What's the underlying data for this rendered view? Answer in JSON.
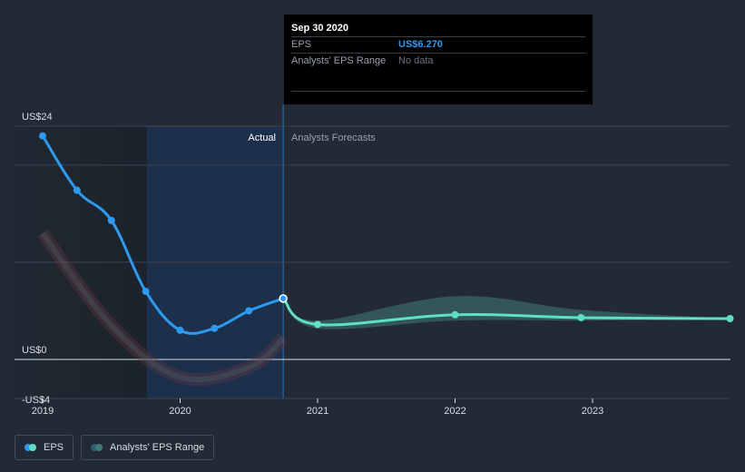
{
  "tooltip": {
    "date": "Sep 30 2020",
    "eps_label": "EPS",
    "eps_value": "US$6.270",
    "range_label": "Analysts' EPS Range",
    "range_value": "No data"
  },
  "labels": {
    "actual": "Actual",
    "forecast": "Analysts Forecasts"
  },
  "legend": {
    "eps": "EPS",
    "range": "Analysts' EPS Range"
  },
  "colors": {
    "background": "#232a36",
    "eps_line": "#2e9aef",
    "forecast_line": "#5ee0c4",
    "range_fill": "#3f7a78",
    "negative_fill": "#6e3a46",
    "past_shade": "#1e2a3d"
  },
  "chart_data": {
    "type": "line",
    "y_tick_labels": [
      "US$24",
      "US$0",
      "-US$4"
    ],
    "y_ticks": [
      24,
      0,
      -4
    ],
    "ylim": [
      -4,
      24
    ],
    "x_tick_labels": [
      "2019",
      "2020",
      "2021",
      "2022",
      "2023"
    ],
    "xlim": [
      "2019-01",
      "2024-01"
    ],
    "grid": true,
    "legend_placement": "bottom-left",
    "series": [
      {
        "name": "EPS",
        "x": [
          "2019-01",
          "2019-04",
          "2019-07",
          "2019-10",
          "2020-01",
          "2020-04",
          "2020-07",
          "2020-10"
        ],
        "y": [
          23.0,
          17.4,
          14.3,
          7.0,
          3.0,
          3.2,
          5.0,
          6.27
        ]
      },
      {
        "name": "Analysts' EPS Range",
        "x": [
          "2020-10",
          "2021-01",
          "2022-01",
          "2022-12",
          "2024-01"
        ],
        "y": [
          6.27,
          3.6,
          4.6,
          4.3,
          4.2
        ]
      }
    ],
    "forecast_range": {
      "x": [
        "2020-10",
        "2021-01",
        "2022-01",
        "2022-12",
        "2024-01"
      ],
      "low": [
        6.27,
        3.2,
        4.0,
        4.0,
        4.1
      ],
      "high": [
        6.27,
        4.0,
        6.5,
        5.1,
        4.2
      ]
    },
    "past_range_band": {
      "x": [
        "2019-01",
        "2019-07",
        "2020-01",
        "2020-07",
        "2020-10"
      ],
      "y": [
        13.0,
        3.5,
        -1.8,
        -0.8,
        2.2
      ]
    }
  }
}
